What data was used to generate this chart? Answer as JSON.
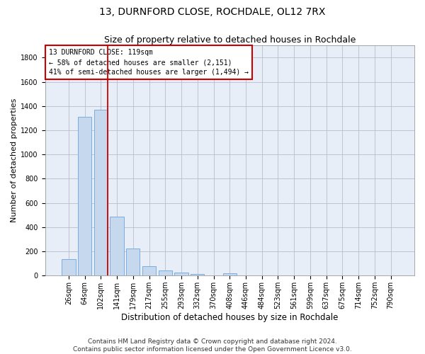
{
  "title": "13, DURNFORD CLOSE, ROCHDALE, OL12 7RX",
  "subtitle": "Size of property relative to detached houses in Rochdale",
  "xlabel": "Distribution of detached houses by size in Rochdale",
  "ylabel": "Number of detached properties",
  "bar_color": "#c5d8ee",
  "bar_edge_color": "#7aade0",
  "grid_color": "#bbbbcc",
  "background_color": "#e8eef8",
  "annotation_box_color": "#cc0000",
  "vline_color": "#cc0000",
  "categories": [
    "26sqm",
    "64sqm",
    "102sqm",
    "141sqm",
    "179sqm",
    "217sqm",
    "255sqm",
    "293sqm",
    "332sqm",
    "370sqm",
    "408sqm",
    "446sqm",
    "484sqm",
    "523sqm",
    "561sqm",
    "599sqm",
    "637sqm",
    "675sqm",
    "714sqm",
    "752sqm",
    "790sqm"
  ],
  "values": [
    135,
    1310,
    1370,
    485,
    225,
    75,
    42,
    28,
    15,
    0,
    20,
    0,
    0,
    0,
    0,
    0,
    0,
    0,
    0,
    0,
    0
  ],
  "vline_x_index": 2,
  "annotation_line1": "13 DURNFORD CLOSE: 119sqm",
  "annotation_line2": "← 58% of detached houses are smaller (2,151)",
  "annotation_line3": "41% of semi-detached houses are larger (1,494) →",
  "ylim": [
    0,
    1900
  ],
  "yticks": [
    0,
    200,
    400,
    600,
    800,
    1000,
    1200,
    1400,
    1600,
    1800
  ],
  "footnote": "Contains HM Land Registry data © Crown copyright and database right 2024.\nContains public sector information licensed under the Open Government Licence v3.0.",
  "title_fontsize": 10,
  "subtitle_fontsize": 9,
  "xlabel_fontsize": 8.5,
  "ylabel_fontsize": 8,
  "tick_fontsize": 7,
  "annot_fontsize": 7,
  "footnote_fontsize": 6.5,
  "bar_width": 0.85
}
